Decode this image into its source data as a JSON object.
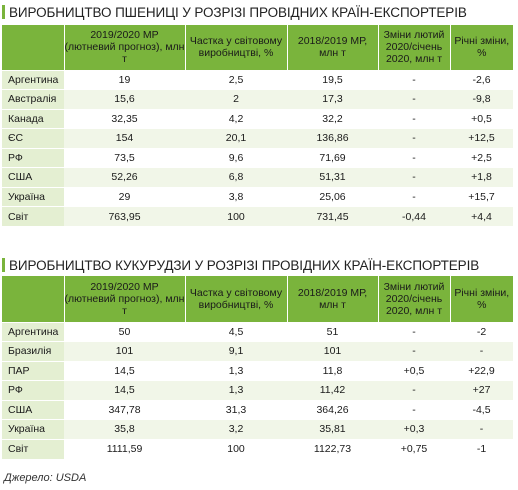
{
  "wheat": {
    "title": "ВИРОБНИЦТВО ПШЕНИЦІ У РОЗРІЗІ ПРОВІДНИХ КРАЇН-ЕКСПОРТЕРІВ",
    "headers": [
      "",
      "2019/2020 МР (лютневий прогноз), млн т",
      "Частка у світовому виробництві, %",
      "2018/2019 МР, млн т",
      "Зміни лютий 2020/січень 2020, млн т",
      "Річні зміни, %"
    ],
    "rows": [
      [
        "Аргентина",
        "19",
        "2,5",
        "19,5",
        "-",
        "-2,6"
      ],
      [
        "Австралія",
        "15,6",
        "2",
        "17,3",
        "-",
        "-9,8"
      ],
      [
        "Канада",
        "32,35",
        "4,2",
        "32,2",
        "-",
        "+0,5"
      ],
      [
        "ЄС",
        "154",
        "20,1",
        "136,86",
        "-",
        "+12,5"
      ],
      [
        "РФ",
        "73,5",
        "9,6",
        "71,69",
        "-",
        "+2,5"
      ],
      [
        "США",
        "52,26",
        "6,8",
        "51,31",
        "-",
        "+1,8"
      ],
      [
        "Україна",
        "29",
        "3,8",
        "25,06",
        "-",
        "+15,7"
      ],
      [
        "Світ",
        "763,95",
        "100",
        "731,45",
        "-0,44",
        "+4,4"
      ]
    ]
  },
  "corn": {
    "title": "ВИРОБНИЦТВО КУКУРУДЗИ У РОЗРІЗІ ПРОВІДНИХ КРАЇН-ЕКСПОРТЕРІВ",
    "headers": [
      "",
      "2019/2020 МР (лютневий прогноз), млн т",
      "Частка у світовому виробництві, %",
      "2018/2019 МР, млн т",
      "Зміни лютий 2020/січень 2020, млн т",
      "Річні зміни, %"
    ],
    "rows": [
      [
        "Аргентина",
        "50",
        "4,5",
        "51",
        "-",
        "-2"
      ],
      [
        "Бразилія",
        "101",
        "9,1",
        "101",
        "-",
        "-"
      ],
      [
        "ПАР",
        "14,5",
        "1,3",
        "11,8",
        "+0,5",
        "+22,9"
      ],
      [
        "РФ",
        "14,5",
        "1,3",
        "11,42",
        "-",
        "+27"
      ],
      [
        "США",
        "347,78",
        "31,3",
        "364,26",
        "-",
        "-4,5"
      ],
      [
        "Україна",
        "35,8",
        "3,2",
        "35,81",
        "+0,3",
        "-"
      ],
      [
        "Світ",
        "1111,59",
        "100",
        "1122,73",
        "+0,75",
        "-1"
      ]
    ]
  },
  "source": "Джерело: USDA",
  "colors": {
    "accent": "#7ab43c",
    "first_col": "#e4efd2",
    "stripe": "#f1f6e8"
  }
}
